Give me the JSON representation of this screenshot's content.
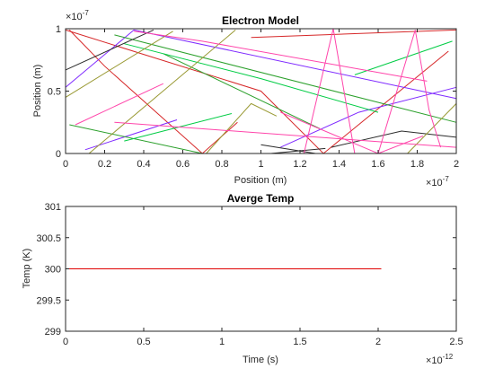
{
  "chart_data": [
    {
      "type": "line",
      "title": "Electron Model",
      "xlabel": "Position (m)",
      "ylabel": "Position (m)",
      "xlim": [
        0,
        2e-07
      ],
      "ylim": [
        0,
        1e-07
      ],
      "x_ticks": [
        0,
        0.2,
        0.4,
        0.6,
        0.8,
        1,
        1.2,
        1.4,
        1.6,
        1.8,
        2
      ],
      "x_tick_labels": [
        "0",
        "0.2",
        "0.4",
        "0.6",
        "0.8",
        "1",
        "1.2",
        "1.4",
        "1.6",
        "1.8",
        "2"
      ],
      "x_exponent_label": "×10",
      "x_exponent": "-7",
      "y_ticks": [
        0,
        0.5,
        1
      ],
      "y_tick_labels": [
        "0",
        "0.5",
        "1"
      ],
      "y_exponent_label": "×10",
      "y_exponent": "-7",
      "grid": false,
      "series": [
        {
          "color": "#d62728",
          "x": [
            2e-09,
            2e-08,
            7e-08,
            8.8e-08
          ],
          "y": [
            9.9e-08,
            7e-08,
            0.0,
            2.5e-08
          ]
        },
        {
          "color": "#d62728",
          "x": [
            0.0,
            1e-07,
            1.32e-07,
            1.96e-07
          ],
          "y": [
            9.9e-08,
            5e-08,
            0.0,
            8.2e-08
          ]
        },
        {
          "color": "#d62728",
          "x": [
            9.5e-08,
            2e-07
          ],
          "y": [
            9.3e-08,
            9.9e-08
          ]
        },
        {
          "color": "#7f2aff",
          "x": [
            0.0,
            3.5e-08,
            2e-07
          ],
          "y": [
            5.3e-08,
            9.9e-08,
            4.4e-08
          ]
        },
        {
          "color": "#7f2aff",
          "x": [
            1.1e-07,
            1.5e-07,
            2e-07
          ],
          "y": [
            5e-09,
            3.3e-08,
            5.3e-08
          ]
        },
        {
          "color": "#7f2aff",
          "x": [
            1e-08,
            5.7e-08
          ],
          "y": [
            3e-09,
            2.7e-08
          ]
        },
        {
          "color": "#2ca02c",
          "x": [
            2.5e-08,
            2e-07
          ],
          "y": [
            9.5e-08,
            2.5e-08
          ]
        },
        {
          "color": "#2ca02c",
          "x": [
            5e-08,
            1.3e-07
          ],
          "y": [
            8e-08,
            2e-08
          ]
        },
        {
          "color": "#2ca02c",
          "x": [
            2e-09,
            7e-08
          ],
          "y": [
            2.3e-08,
            0.0
          ]
        },
        {
          "color": "#00cc44",
          "x": [
            3e-08,
            1e-07,
            1.6e-07
          ],
          "y": [
            8.8e-08,
            6e-08,
            3.3e-08
          ]
        },
        {
          "color": "#00cc44",
          "x": [
            1.48e-07,
            1.98e-07
          ],
          "y": [
            6.3e-08,
            9e-08
          ]
        },
        {
          "color": "#00cc44",
          "x": [
            3e-08,
            8.5e-08
          ],
          "y": [
            1e-08,
            3.2e-08
          ]
        },
        {
          "color": "#2b2b2b",
          "x": [
            0.0,
            4.5e-08
          ],
          "y": [
            6.7e-08,
            9.9e-08
          ]
        },
        {
          "color": "#2b2b2b",
          "x": [
            1e-07,
            1.28e-07
          ],
          "y": [
            7e-09,
            0.0
          ]
        },
        {
          "color": "#2b2b2b",
          "x": [
            1.05e-07,
            1.33e-07
          ],
          "y": [
            0.0,
            4e-09
          ]
        },
        {
          "color": "#2b2b2b",
          "x": [
            1.36e-07,
            1.72e-07,
            2e-07
          ],
          "y": [
            5e-09,
            1.8e-08,
            1.3e-08
          ]
        },
        {
          "color": "#999933",
          "x": [
            0.0,
            5.5e-08
          ],
          "y": [
            4.5e-08,
            9.8e-08
          ]
        },
        {
          "color": "#999933",
          "x": [
            1.2e-08,
            8.7e-08
          ],
          "y": [
            0.0,
            9.9e-08
          ]
        },
        {
          "color": "#999933",
          "x": [
            7.2e-08,
            9.5e-08,
            1.08e-07
          ],
          "y": [
            0.0,
            4e-08,
            3e-08
          ]
        },
        {
          "color": "#999933",
          "x": [
            1.75e-07,
            2e-07
          ],
          "y": [
            0.0,
            4e-08
          ]
        },
        {
          "color": "#ff44aa",
          "x": [
            5e-09,
            5e-08
          ],
          "y": [
            2.3e-08,
            5.6e-08
          ]
        },
        {
          "color": "#ff44aa",
          "x": [
            2.5e-08,
            2e-07
          ],
          "y": [
            2.5e-08,
            5e-09
          ]
        },
        {
          "color": "#ff44aa",
          "x": [
            3.5e-08,
            7e-08,
            1.85e-07
          ],
          "y": [
            9.8e-08,
            9e-08,
            5.8e-08
          ]
        },
        {
          "color": "#ff44aa",
          "x": [
            1.22e-07,
            1.37e-07,
            1.48e-07
          ],
          "y": [
            0.0,
            1e-07,
            0.0
          ]
        },
        {
          "color": "#ff44aa",
          "x": [
            1.6e-07,
            1.79e-07,
            1.86e-07,
            1.92e-07
          ],
          "y": [
            0.0,
            9.9e-08,
            3.5e-08,
            5e-09
          ]
        },
        {
          "color": "#ff44aa",
          "x": [
            1.1e-07,
            1.6e-07,
            1.83e-07
          ],
          "y": [
            3.3e-08,
            0.0,
            1.4e-08
          ]
        }
      ]
    },
    {
      "type": "line",
      "title": "Averge Temp",
      "xlabel": "Time (s)",
      "ylabel": "Temp (K)",
      "xlim": [
        0,
        2.5e-12
      ],
      "ylim": [
        299,
        301
      ],
      "x_ticks": [
        0,
        0.5,
        1,
        1.5,
        2,
        2.5
      ],
      "x_tick_labels": [
        "0",
        "0.5",
        "1",
        "1.5",
        "2",
        "2.5"
      ],
      "x_exponent_label": "×10",
      "x_exponent": "-12",
      "y_ticks": [
        299,
        299.5,
        300,
        300.5,
        301
      ],
      "y_tick_labels": [
        "299",
        "299.5",
        "300",
        "300.5",
        "301"
      ],
      "grid": false,
      "series": [
        {
          "color": "#e00000",
          "x": [
            0,
            2.02e-12
          ],
          "y": [
            300,
            300
          ]
        }
      ]
    }
  ]
}
